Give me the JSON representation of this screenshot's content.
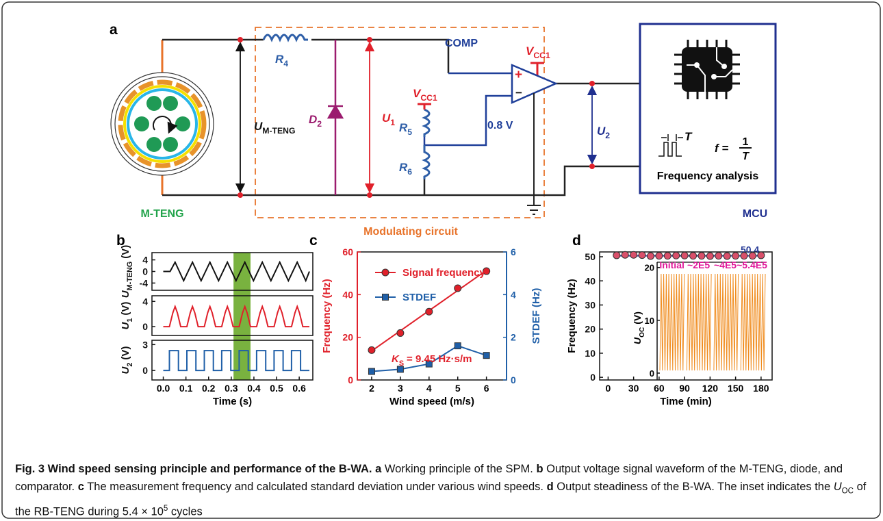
{
  "panel_a": {
    "letter": "a",
    "labels": {
      "r4": {
        "text": "R",
        "sub": "4"
      },
      "um": {
        "text": "U",
        "sub": "M-TENG"
      },
      "d2": {
        "text": "D",
        "sub": "2"
      },
      "u1": {
        "text": "U",
        "sub": "1"
      },
      "vcc_r": {
        "text": "V",
        "sub": "CC1"
      },
      "vcc_comp": {
        "text": "V",
        "sub": "CC1"
      },
      "r5": {
        "text": "R",
        "sub": "5"
      },
      "r6": {
        "text": "R",
        "sub": "6"
      },
      "u2": {
        "text": "U",
        "sub": "2"
      }
    },
    "comp": "COMP",
    "threshold": "0.8 V",
    "plus": "+",
    "minus": "−",
    "period": "T",
    "formula": {
      "lhs": "f =",
      "num": "1",
      "den": "T"
    },
    "analysis": "Frequency analysis",
    "sections": [
      "M-TENG",
      "Modulating circuit",
      "MCU"
    ]
  },
  "chart_data": [
    {
      "type": "line",
      "letter": "b",
      "color": "#111111",
      "highlight": [
        0.31,
        0.385
      ],
      "highlight_color": "#6aaa2a",
      "ylabel": {
        "text": "U",
        "sub": "M-TENG",
        "rest": "(V)"
      },
      "x": [
        0,
        0.03,
        0.052,
        0.09,
        0.129,
        0.167,
        0.206,
        0.244,
        0.283,
        0.321,
        0.36,
        0.398,
        0.437,
        0.475,
        0.514,
        0.552,
        0.591,
        0.629,
        0.645
      ],
      "values": [
        0,
        0,
        3.2,
        -3.2,
        3.2,
        -3.2,
        3.2,
        -3.2,
        3.2,
        -3.2,
        3.2,
        -3.2,
        3.2,
        -3.2,
        3.2,
        -3.2,
        3.2,
        -3.2,
        0
      ],
      "xlim": [
        -0.05,
        0.66
      ],
      "ylim": [
        -6.5,
        6.5
      ],
      "yticks": [
        4,
        0,
        -4
      ]
    },
    {
      "type": "line",
      "color": "#e0202a",
      "ylabel": {
        "text": "U",
        "sub": "1",
        "rest": "(V)"
      },
      "x": [
        0,
        0.027,
        0.042,
        0.052,
        0.062,
        0.077,
        0.104,
        0.119,
        0.129,
        0.139,
        0.154,
        0.181,
        0.196,
        0.206,
        0.216,
        0.231,
        0.258,
        0.273,
        0.283,
        0.293,
        0.308,
        0.335,
        0.35,
        0.36,
        0.37,
        0.385,
        0.412,
        0.427,
        0.437,
        0.447,
        0.462,
        0.489,
        0.504,
        0.514,
        0.524,
        0.539,
        0.566,
        0.581,
        0.591,
        0.601,
        0.616,
        0.645
      ],
      "values": [
        0,
        0,
        2.2,
        3.2,
        2.2,
        0,
        0,
        2.2,
        3.2,
        2.2,
        0,
        0,
        2.2,
        3.2,
        2.2,
        0,
        0,
        2.2,
        3.2,
        2.2,
        0,
        0,
        2.2,
        3.2,
        2.2,
        0,
        0,
        2.2,
        3.2,
        2.2,
        0,
        0,
        2.2,
        3.2,
        2.2,
        0,
        0,
        2.2,
        3.2,
        2.2,
        0,
        0
      ],
      "xlim": [
        -0.05,
        0.66
      ],
      "ylim": [
        -1.4,
        4.9
      ],
      "yticks": [
        4,
        0
      ]
    },
    {
      "type": "line",
      "color": "#1f5fa8",
      "ylabel": {
        "text": "U",
        "sub": "2",
        "rest": "(V)"
      },
      "xlabel": "Time (s)",
      "x": [
        0,
        0.027,
        0.027,
        0.067,
        0.067,
        0.104,
        0.104,
        0.144,
        0.144,
        0.181,
        0.181,
        0.221,
        0.221,
        0.258,
        0.258,
        0.298,
        0.298,
        0.335,
        0.335,
        0.375,
        0.375,
        0.412,
        0.412,
        0.452,
        0.452,
        0.489,
        0.489,
        0.529,
        0.529,
        0.566,
        0.566,
        0.606,
        0.606,
        0.645
      ],
      "values": [
        0,
        0,
        2.3,
        2.3,
        0,
        0,
        2.3,
        2.3,
        0,
        0,
        2.3,
        2.3,
        0,
        0,
        2.3,
        2.3,
        0,
        0,
        2.3,
        2.3,
        0,
        0,
        2.3,
        2.3,
        0,
        0,
        2.3,
        2.3,
        0,
        0,
        2.3,
        2.3,
        0,
        0
      ],
      "xlim": [
        -0.05,
        0.66
      ],
      "xticks": [
        {
          "value": 0,
          "label": "0.0"
        },
        0.1,
        0.2,
        0.3,
        0.4,
        0.5,
        0.6
      ],
      "ylim": [
        -1.1,
        3.5
      ],
      "yticks": [
        3,
        0
      ]
    },
    {
      "type": "line",
      "letter": "c",
      "x": [
        2,
        3,
        4,
        5,
        6
      ],
      "xlim": [
        1.5,
        6.7
      ],
      "xticks": [
        2,
        3,
        4,
        5,
        6
      ],
      "ylim": [
        0,
        60
      ],
      "yticks": [
        0,
        20,
        40,
        60
      ],
      "y2lim": [
        0,
        6
      ],
      "y2ticks": [
        0,
        2,
        4,
        6
      ],
      "xlabel": "Wind speed (m/s)",
      "ylabel": "Frequency (Hz)",
      "y2label": "STDEF (Hz)",
      "legend": "upper left",
      "series": [
        {
          "name": "Signal frequency",
          "color": "#e0202a",
          "marker": "circle",
          "line": false,
          "values": [
            14,
            22,
            32,
            43,
            51
          ]
        },
        {
          "name": "STDEF",
          "color": "#1f5fa8",
          "marker": "square",
          "axis": "y2",
          "values": [
            0.4,
            0.5,
            0.75,
            1.6,
            1.15
          ]
        }
      ],
      "fit": {
        "x": [
          2,
          6
        ],
        "values": [
          13.6,
          51.4
        ],
        "color": "#e0202a"
      },
      "annotation": {
        "text": "K",
        "sub": "S",
        "rest": "= 9.45 Hz·s/m"
      }
    },
    {
      "type": "scatter",
      "letter": "d",
      "x": [
        10,
        20,
        30,
        40,
        50,
        60,
        70,
        80,
        90,
        100,
        110,
        120,
        130,
        140,
        150,
        160,
        170,
        180
      ],
      "values": [
        50.6,
        50.8,
        50.8,
        50.7,
        50.3,
        50.4,
        50.4,
        50.5,
        50.5,
        50.4,
        50.4,
        50.3,
        50.4,
        50.3,
        50.4,
        50.4,
        50.4,
        50.6
      ],
      "color": "#d9506a",
      "xlim": [
        -10,
        193
      ],
      "xticks": [
        0,
        30,
        60,
        90,
        120,
        150,
        180
      ],
      "ylim": [
        -1.1,
        52
      ],
      "yticks": [
        0,
        10,
        20,
        30,
        40,
        50
      ],
      "xlabel": "Time (min)",
      "ylabel": "Frequency (Hz)",
      "mean": {
        "value": 50.4,
        "color": "#2b3f99"
      },
      "inset": {
        "type": "line",
        "color": "#f08c1e",
        "ylim": [
          -1.3,
          21
        ],
        "yticks": [
          0,
          10,
          20
        ],
        "ylabel": {
          "text": "U",
          "sub": "OC",
          "rest": "(V)"
        },
        "labels": [
          "Initial",
          "~2E5",
          "~4E5",
          "~5.4E5"
        ],
        "label_color": "#e0189a",
        "values": [
          0.5,
          18.8,
          0.5,
          18.8,
          0.5,
          18.8,
          0.5,
          18.8,
          0.5,
          18.8,
          0.5,
          18.8,
          0.5,
          18.8,
          0.5,
          18.8,
          0.5,
          18.8,
          0.5,
          18.8,
          null,
          0.5,
          18.8,
          0.5,
          18.8,
          0.5,
          18.8,
          0.5,
          18.8,
          0.5,
          18.8,
          0.5,
          18.8,
          0.5,
          18.8,
          0.5,
          18.8,
          0.5,
          18.8,
          0.5,
          18.8,
          null,
          0.5,
          18.8,
          0.5,
          18.8,
          0.5,
          18.8,
          0.5,
          18.8,
          0.5,
          18.8,
          0.5,
          18.8,
          0.5,
          18.8,
          0.5,
          18.8,
          0.5,
          18.8,
          0.5,
          18.8,
          null,
          0.5,
          18.8,
          0.5,
          18.8,
          0.5,
          18.8,
          0.5,
          18.8,
          0.5,
          18.8,
          0.5,
          18.8,
          0.5,
          18.8,
          0.5,
          18.8,
          0.5,
          18.8,
          0.5,
          18.8
        ]
      }
    }
  ],
  "caption": [
    {
      "text": "Fig. 3 Wind speed sensing principle and performance of the B-WA. a",
      "style": "bold"
    },
    {
      "text": " Working principle of the SPM. "
    },
    {
      "text": "b",
      "style": "bold"
    },
    {
      "text": " Output voltage signal waveform of the M-TENG, diode, and comparator. "
    },
    {
      "text": "c",
      "style": "bold"
    },
    {
      "text": " The measurement frequency and calculated standard deviation under various wind speeds. "
    },
    {
      "text": "d",
      "style": "bold"
    },
    {
      "text": " Output steadiness of the B-WA. The inset indicates the "
    },
    {
      "text": "U",
      "style": "italic"
    },
    {
      "text": "OC",
      "style": "sub"
    },
    {
      "text": " of the RB-TENG during 5.4 × 10"
    },
    {
      "text": "5",
      "style": "sup"
    },
    {
      "text": " cycles"
    }
  ]
}
